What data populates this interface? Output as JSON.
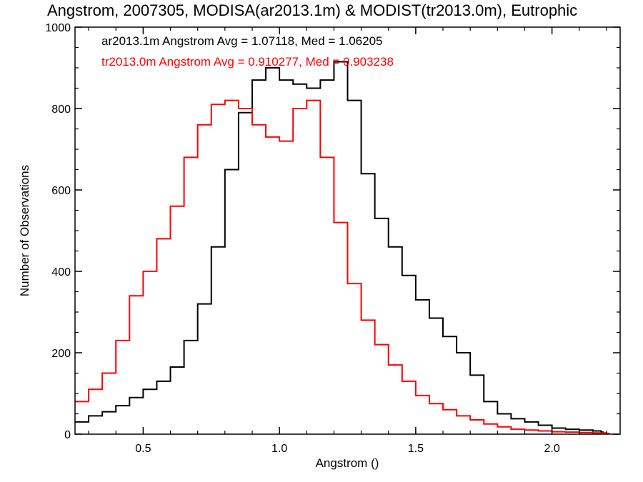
{
  "chart_data": {
    "type": "line",
    "title": "Angstrom, 2007305, MODISA(ar2013.1m) & MODIST(tr2013.0m), Eutrophic",
    "xlabel": "Angstrom ()",
    "ylabel": "Number of Observations",
    "xlim": [
      0.25,
      2.25
    ],
    "ylim": [
      0,
      1000
    ],
    "xticks": [
      0.5,
      1.0,
      1.5,
      2.0
    ],
    "xtick_labels": [
      "0.5",
      "1.0",
      "1.5",
      "2.0"
    ],
    "yticks": [
      0,
      200,
      400,
      600,
      800,
      1000
    ],
    "ytick_labels": [
      "0",
      "200",
      "400",
      "600",
      "800",
      "1000"
    ],
    "grid": false,
    "annotations": [
      {
        "text": "ar2013.1m Angstrom Avg = 1.07118, Med = 1.06205",
        "color": "#000000"
      },
      {
        "text": "tr2013.0m Angstrom Avg = 0.910277, Med = 0.903238",
        "color": "#ff0000"
      }
    ],
    "series": [
      {
        "color": "#000000",
        "style": "step",
        "x": [
          0.25,
          0.3,
          0.35,
          0.4,
          0.45,
          0.5,
          0.55,
          0.6,
          0.65,
          0.7,
          0.75,
          0.8,
          0.85,
          0.9,
          0.95,
          1.0,
          1.05,
          1.1,
          1.15,
          1.2,
          1.25,
          1.3,
          1.35,
          1.4,
          1.45,
          1.5,
          1.55,
          1.6,
          1.65,
          1.7,
          1.75,
          1.8,
          1.85,
          1.9,
          1.95,
          2.0,
          2.05,
          2.1,
          2.15,
          2.18
        ],
        "y": [
          30,
          45,
          55,
          70,
          90,
          110,
          130,
          165,
          230,
          320,
          460,
          650,
          790,
          870,
          900,
          870,
          860,
          850,
          870,
          915,
          820,
          640,
          530,
          460,
          390,
          330,
          285,
          240,
          200,
          145,
          80,
          50,
          38,
          30,
          22,
          15,
          12,
          10,
          8,
          5
        ]
      },
      {
        "color": "#ff0000",
        "style": "step",
        "x": [
          0.25,
          0.3,
          0.35,
          0.4,
          0.45,
          0.5,
          0.55,
          0.6,
          0.65,
          0.7,
          0.75,
          0.8,
          0.85,
          0.9,
          0.95,
          1.0,
          1.05,
          1.1,
          1.15,
          1.2,
          1.25,
          1.3,
          1.35,
          1.4,
          1.45,
          1.5,
          1.55,
          1.6,
          1.65,
          1.7,
          1.75,
          1.8,
          1.85,
          1.9,
          1.95,
          2.0,
          2.05,
          2.1,
          2.15,
          2.2
        ],
        "y": [
          80,
          110,
          150,
          230,
          340,
          400,
          480,
          560,
          680,
          760,
          810,
          820,
          800,
          760,
          730,
          720,
          800,
          820,
          680,
          520,
          370,
          280,
          220,
          170,
          130,
          95,
          75,
          60,
          45,
          35,
          25,
          18,
          12,
          10,
          8,
          6,
          5,
          4,
          3,
          2
        ]
      }
    ]
  }
}
